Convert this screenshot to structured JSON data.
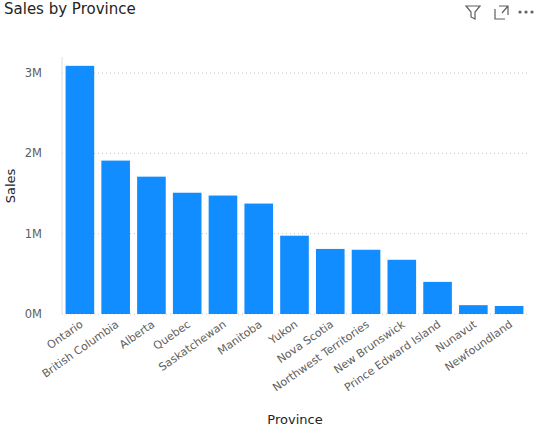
{
  "chart_data": {
    "type": "bar",
    "title": "Sales by Province",
    "x_label": "Province",
    "y_label": "Sales",
    "categories": [
      "Ontario",
      "British Columbia",
      "Alberta",
      "Quebec",
      "Saskatchewan",
      "Manitoba",
      "Yukon",
      "Nova Scotia",
      "Northwest Territories",
      "New Brunswick",
      "Prince Edward Island",
      "Nunavut",
      "Newfoundland"
    ],
    "values": [
      3090000,
      1910000,
      1710000,
      1510000,
      1475000,
      1375000,
      975000,
      810000,
      800000,
      675000,
      400000,
      110000,
      100000
    ],
    "color": "#118dff",
    "ylim": [
      0,
      3200000
    ],
    "yticks": [
      {
        "value": 0,
        "label": "0M"
      },
      {
        "value": 1000000,
        "label": "1M"
      },
      {
        "value": 2000000,
        "label": "2M"
      },
      {
        "value": 3000000,
        "label": "3M"
      }
    ],
    "grid": true
  }
}
